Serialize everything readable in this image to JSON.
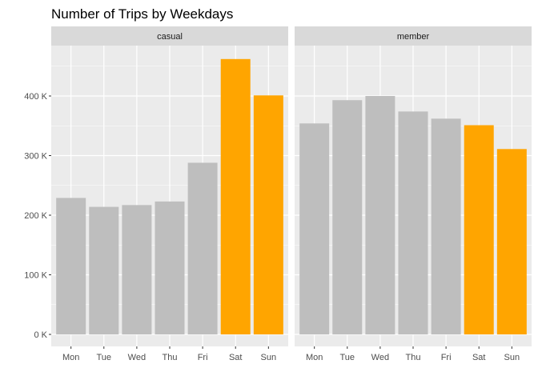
{
  "chart_data": {
    "type": "bar",
    "title": "Number of Trips by Weekdays",
    "xlabel": "",
    "ylabel": "",
    "categories": [
      "Mon",
      "Tue",
      "Wed",
      "Thu",
      "Fri",
      "Sat",
      "Sun"
    ],
    "ylim": [
      0,
      490000
    ],
    "yticks": [
      0,
      100000,
      200000,
      300000,
      400000
    ],
    "ytick_labels": [
      "0 K",
      "100 K",
      "200 K",
      "300 K",
      "400 K"
    ],
    "panels": [
      {
        "name": "casual",
        "values": [
          229000,
          214000,
          217000,
          223000,
          288000,
          462000,
          401000
        ],
        "colors": [
          "#bebebe",
          "#bebebe",
          "#bebebe",
          "#bebebe",
          "#bebebe",
          "#ffa500",
          "#ffa500"
        ]
      },
      {
        "name": "member",
        "values": [
          354000,
          393000,
          400000,
          374000,
          362000,
          351000,
          311000
        ],
        "colors": [
          "#bebebe",
          "#bebebe",
          "#bebebe",
          "#bebebe",
          "#bebebe",
          "#ffa500",
          "#ffa500"
        ]
      }
    ],
    "grid": true,
    "legend": "none"
  },
  "colors": {
    "panel_background": "#ebebeb",
    "strip_background": "#d9d9d9",
    "grid": "#ffffff",
    "default_bar": "#bebebe",
    "weekend_bar": "#ffa500"
  }
}
